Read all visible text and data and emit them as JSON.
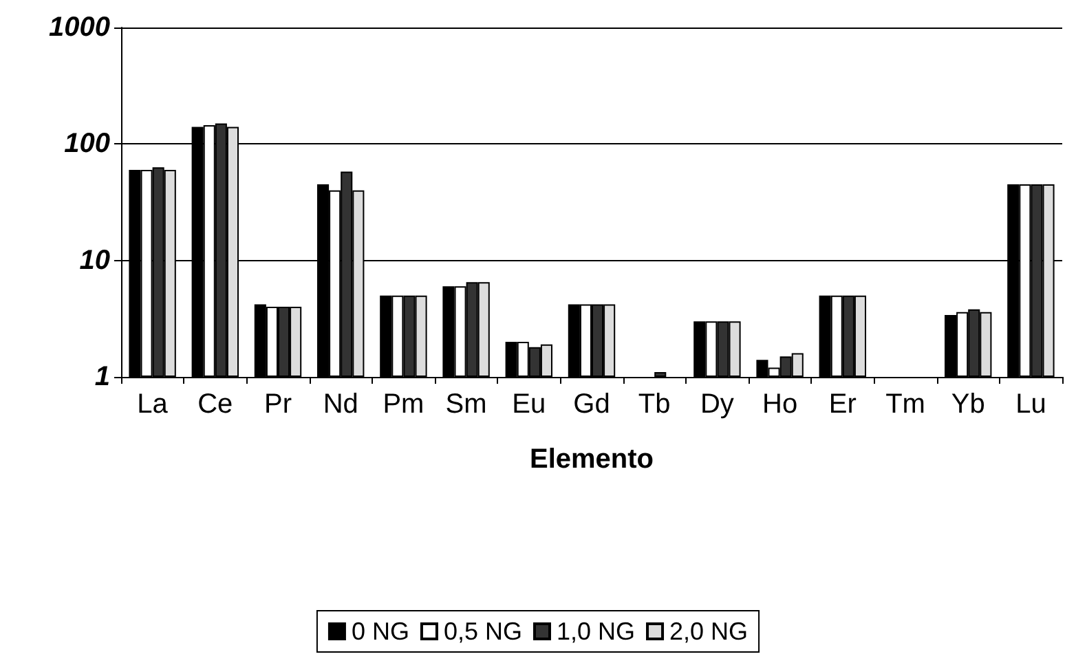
{
  "chart_data": {
    "type": "bar",
    "xlabel": "Elemento",
    "categories": [
      "La",
      "Ce",
      "Pr",
      "Nd",
      "Pm",
      "Sm",
      "Eu",
      "Gd",
      "Tb",
      "Dy",
      "Ho",
      "Er",
      "Tm",
      "Yb",
      "Lu"
    ],
    "series": [
      {
        "name": "0 NG",
        "color": "#000000",
        "values": [
          60,
          140,
          4.2,
          45,
          5,
          6,
          2,
          4.2,
          1,
          3,
          1.4,
          5,
          1,
          3.4,
          45
        ]
      },
      {
        "name": "0,5 NG",
        "color": "#ffffff",
        "values": [
          60,
          145,
          4,
          40,
          5,
          6,
          2,
          4.2,
          1,
          3,
          1.2,
          5,
          1,
          3.6,
          45
        ]
      },
      {
        "name": "1,0 NG",
        "color": "#333333",
        "values": [
          63,
          150,
          4,
          58,
          5,
          6.5,
          1.8,
          4.2,
          1.1,
          3,
          1.5,
          5,
          1,
          3.8,
          45
        ]
      },
      {
        "name": "2,0 NG",
        "color": "#dddddd",
        "values": [
          60,
          140,
          4,
          40,
          5,
          6.5,
          1.9,
          4.2,
          1,
          3,
          1.6,
          5,
          1,
          3.6,
          45
        ]
      }
    ],
    "log": "y",
    "ylim": [
      1,
      1000
    ],
    "yticks": [
      1,
      10,
      100,
      1000
    ],
    "grid": "y",
    "legend": "bottom"
  }
}
